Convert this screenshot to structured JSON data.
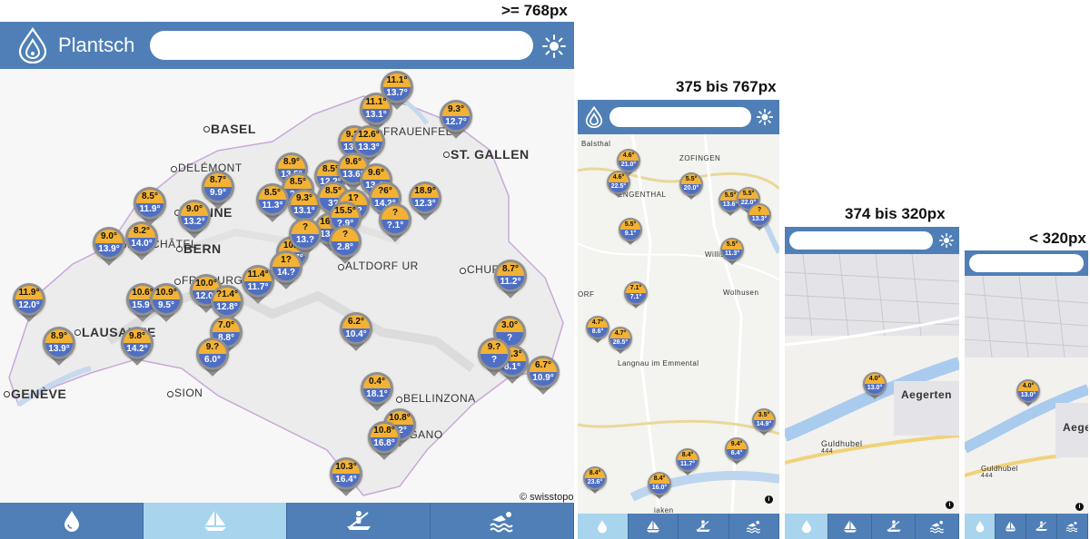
{
  "breakpoints": {
    "desktop": ">= 768px",
    "tablet": "375 bis 767px",
    "mobile": "374 bis 320px",
    "tiny": "< 320px"
  },
  "app": {
    "name": "Plantsch"
  },
  "colors": {
    "header": "#4f7fb6",
    "nav_active": "#a8d4ee",
    "air": "#f3b233",
    "water": "#4f6fc4"
  },
  "attribution": "© swisstopo",
  "nav": [
    {
      "name": "water",
      "icon": "water-drop-icon"
    },
    {
      "name": "sail",
      "icon": "sailboat-icon"
    },
    {
      "name": "kayak",
      "icon": "kayak-icon"
    },
    {
      "name": "swim",
      "icon": "swimmer-icon"
    }
  ],
  "desktop_cities": [
    {
      "label": "BASEL",
      "big": true
    },
    {
      "label": "FRAUENFELD",
      "big": false
    },
    {
      "label": "ST. GALLEN",
      "big": true
    },
    {
      "label": "DELÉMONT",
      "big": false
    },
    {
      "label": "BIENNE",
      "big": true
    },
    {
      "label": "BERN",
      "big": true
    },
    {
      "label": "ALTDORF UR",
      "big": false
    },
    {
      "label": "CHUR",
      "big": false
    },
    {
      "label": "LAUSANNE",
      "big": true
    },
    {
      "label": "SION",
      "big": false
    },
    {
      "label": "BELLINZONA",
      "big": false
    },
    {
      "label": "GENÈVE",
      "big": true
    },
    {
      "label": "FRIBOURG",
      "big": false
    },
    {
      "label": "LUGANO",
      "big": false
    },
    {
      "label": "NEUCHÂTEL",
      "big": false
    }
  ],
  "desktop_pins": [
    {
      "air": "11.1°",
      "water": "13.7°"
    },
    {
      "air": "11.1°",
      "water": "13.1°"
    },
    {
      "air": "9.3°",
      "water": "12.7°"
    },
    {
      "air": "9.?°",
      "water": "13.3°"
    },
    {
      "air": "12.6°",
      "water": "13.3°"
    },
    {
      "air": "8.9°",
      "water": "13.5°"
    },
    {
      "air": "8.5°",
      "water": "12.2°"
    },
    {
      "air": "9.6°",
      "water": "13.6°"
    },
    {
      "air": "9.6°",
      "water": "13.4°"
    },
    {
      "air": "8.7°",
      "water": "9.9°"
    },
    {
      "air": "8.5°",
      "water": "?.9°"
    },
    {
      "air": "8.5°",
      "water": "11.3°"
    },
    {
      "air": "9.3°",
      "water": "13.1°"
    },
    {
      "air": "8.5°",
      "water": "3?"
    },
    {
      "air": "1?",
      "water": "11.?"
    },
    {
      "air": "?6°",
      "water": "14.2°"
    },
    {
      "air": "18.9°",
      "water": "12.3°"
    },
    {
      "air": "8.5°",
      "water": "11.9°"
    },
    {
      "air": "9.0°",
      "water": "13.2°"
    },
    {
      "air": "16.2°",
      "water": "13.3°"
    },
    {
      "air": "15.5°",
      "water": "?.9°"
    },
    {
      "air": "?",
      "water": "?.1°"
    },
    {
      "air": "9.0°",
      "water": "13.9°"
    },
    {
      "air": "8.2°",
      "water": "14.0°"
    },
    {
      "air": "10.?",
      "water": "12.7°"
    },
    {
      "air": "?",
      "water": "13.?"
    },
    {
      "air": "?",
      "water": "2.8°"
    },
    {
      "air": "8.7°",
      "water": "11.2°"
    },
    {
      "air": "11.4°",
      "water": "11.7°"
    },
    {
      "air": "1?",
      "water": "14.?"
    },
    {
      "air": "11.9°",
      "water": "12.0°"
    },
    {
      "air": "10.6°",
      "water": "15.9°"
    },
    {
      "air": "10.9°",
      "water": "9.5°"
    },
    {
      "air": "10.0°",
      "water": "12.0°"
    },
    {
      "air": "?1.4°",
      "water": "12.8°"
    },
    {
      "air": "6.2°",
      "water": "10.4°"
    },
    {
      "air": "8.9°",
      "water": "13.9°"
    },
    {
      "air": "9.8°",
      "water": "14.2°"
    },
    {
      "air": "7.0°",
      "water": "8.8°"
    },
    {
      "air": "9.?",
      "water": "6.0°"
    },
    {
      "air": "3.0°",
      "water": "?"
    },
    {
      "air": "-3.3°",
      "water": "8.1°"
    },
    {
      "air": "9.?",
      "water": "?"
    },
    {
      "air": "6.7°",
      "water": "10.9°"
    },
    {
      "air": "0.4°",
      "water": "18.1°"
    },
    {
      "air": "10.8°",
      "water": "?2°"
    },
    {
      "air": "10.8°",
      "water": "16.8°"
    },
    {
      "air": "10.3°",
      "water": "16.4°"
    }
  ],
  "tablet_towns": [
    {
      "label": "Balsthal"
    },
    {
      "label": "ZOFINGEN"
    },
    {
      "label": "ENGENTHAL"
    },
    {
      "label": "Willisa"
    },
    {
      "label": "Wolhusen"
    },
    {
      "label": "ORF"
    },
    {
      "label": "Langnau im Emmental"
    },
    {
      "label": "iaken"
    }
  ],
  "tablet_pins": [
    {
      "air": "4.6°",
      "water": "21.0°"
    },
    {
      "air": "4.6°",
      "water": "22.5°"
    },
    {
      "air": "5.5°",
      "water": "20.0°"
    },
    {
      "air": "5.5°",
      "water": "13.6°"
    },
    {
      "air": "5.5°",
      "water": "22.0°"
    },
    {
      "air": "?",
      "water": "13.3°"
    },
    {
      "air": "5.5°",
      "water": "9.1°"
    },
    {
      "air": "5.5°",
      "water": "11.3°"
    },
    {
      "air": "7.1°",
      "water": "7.1°"
    },
    {
      "air": "4.7°",
      "water": "8.6°"
    },
    {
      "air": "4.7°",
      "water": "28.5°"
    },
    {
      "air": "3.5°",
      "water": "14.9°"
    },
    {
      "air": "9.4°",
      "water": "6.4°"
    },
    {
      "air": "8.4°",
      "water": "11.7°"
    },
    {
      "air": "8.4°",
      "water": "23.6°"
    },
    {
      "air": "8.4°",
      "water": "16.0°"
    }
  ],
  "mobile_map": {
    "town": "Aegerten",
    "hill": "Guldhubel",
    "elevation": "444",
    "pin": {
      "air": "4.0°",
      "water": "13.0°"
    }
  },
  "tiny_map": {
    "town": "Aege",
    "hill": "Guldhubel",
    "elevation": "444",
    "pin": {
      "air": "4.0°",
      "water": "13.0°"
    }
  }
}
